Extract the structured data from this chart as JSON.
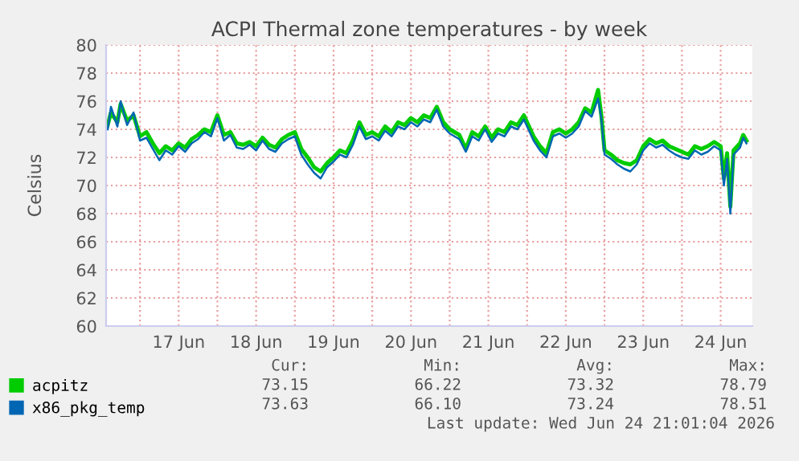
{
  "chart_data": {
    "type": "line",
    "title": "ACPI Thermal zone temperatures - by week",
    "ylabel": "Celsius",
    "x": [
      "2026-06-16T14:00",
      "2026-06-16T15:00",
      "2026-06-16T17:00",
      "2026-06-16T18:00",
      "2026-06-16T20:00",
      "2026-06-16T22:00",
      "2026-06-17T00:00",
      "2026-06-17T02:00",
      "2026-06-17T04:00",
      "2026-06-17T06:00",
      "2026-06-17T08:00",
      "2026-06-17T10:00",
      "2026-06-17T12:00",
      "2026-06-17T14:00",
      "2026-06-17T16:00",
      "2026-06-17T18:00",
      "2026-06-17T20:00",
      "2026-06-17T22:00",
      "2026-06-18T00:00",
      "2026-06-18T02:00",
      "2026-06-18T04:00",
      "2026-06-18T06:00",
      "2026-06-18T08:00",
      "2026-06-18T10:00",
      "2026-06-18T12:00",
      "2026-06-18T14:00",
      "2026-06-18T16:00",
      "2026-06-18T18:00",
      "2026-06-18T20:00",
      "2026-06-18T22:00",
      "2026-06-19T00:00",
      "2026-06-19T02:00",
      "2026-06-19T04:00",
      "2026-06-19T06:00",
      "2026-06-19T08:00",
      "2026-06-19T10:00",
      "2026-06-19T12:00",
      "2026-06-19T14:00",
      "2026-06-19T16:00",
      "2026-06-19T18:00",
      "2026-06-19T20:00",
      "2026-06-19T22:00",
      "2026-06-20T00:00",
      "2026-06-20T02:00",
      "2026-06-20T04:00",
      "2026-06-20T06:00",
      "2026-06-20T08:00",
      "2026-06-20T10:00",
      "2026-06-20T12:00",
      "2026-06-20T14:00",
      "2026-06-20T16:00",
      "2026-06-20T18:00",
      "2026-06-20T20:00",
      "2026-06-20T22:00",
      "2026-06-21T00:00",
      "2026-06-21T03:00",
      "2026-06-21T05:00",
      "2026-06-21T07:00",
      "2026-06-21T09:00",
      "2026-06-21T11:00",
      "2026-06-21T13:00",
      "2026-06-21T15:00",
      "2026-06-21T17:00",
      "2026-06-21T19:00",
      "2026-06-21T21:00",
      "2026-06-21T23:00",
      "2026-06-22T02:00",
      "2026-06-22T04:00",
      "2026-06-22T06:00",
      "2026-06-22T08:00",
      "2026-06-22T10:00",
      "2026-06-22T12:00",
      "2026-06-22T14:00",
      "2026-06-22T16:00",
      "2026-06-22T18:00",
      "2026-06-22T20:00",
      "2026-06-22T22:00",
      "2026-06-22T23:00",
      "2026-06-23T00:00",
      "2026-06-23T02:00",
      "2026-06-23T04:00",
      "2026-06-23T06:00",
      "2026-06-23T08:00",
      "2026-06-23T10:00",
      "2026-06-23T12:00",
      "2026-06-23T14:00",
      "2026-06-23T16:00",
      "2026-06-23T18:00",
      "2026-06-23T20:00",
      "2026-06-23T22:00",
      "2026-06-24T00:00",
      "2026-06-24T02:00",
      "2026-06-24T04:00",
      "2026-06-24T06:00",
      "2026-06-24T08:00",
      "2026-06-24T10:00",
      "2026-06-24T12:00",
      "2026-06-24T13:00",
      "2026-06-24T14:00",
      "2026-06-24T15:00",
      "2026-06-24T16:00",
      "2026-06-24T18:00",
      "2026-06-24T19:00",
      "2026-06-24T20:00"
    ],
    "series": [
      {
        "name": "acpitz",
        "color": "#00cc00",
        "values": [
          74.3,
          75.2,
          74.5,
          75.8,
          74.6,
          75.0,
          73.5,
          73.8,
          73.0,
          72.3,
          72.8,
          72.5,
          73.0,
          72.7,
          73.3,
          73.6,
          74.0,
          73.8,
          75.0,
          73.6,
          73.8,
          73.0,
          72.9,
          73.1,
          72.8,
          73.4,
          72.9,
          72.7,
          73.3,
          73.6,
          73.8,
          72.6,
          72.0,
          71.3,
          71.0,
          71.6,
          72.0,
          72.5,
          72.3,
          73.2,
          74.5,
          73.6,
          73.8,
          73.5,
          74.2,
          73.8,
          74.5,
          74.3,
          74.8,
          74.5,
          75.0,
          74.8,
          75.6,
          74.5,
          74.0,
          73.6,
          72.6,
          73.8,
          73.5,
          74.2,
          73.4,
          74.0,
          73.8,
          74.5,
          74.3,
          75.0,
          73.5,
          72.8,
          72.3,
          73.8,
          74.0,
          73.7,
          74.0,
          74.5,
          75.5,
          75.2,
          76.8,
          75.0,
          72.5,
          72.2,
          71.8,
          71.6,
          71.5,
          71.8,
          72.8,
          73.3,
          73.0,
          73.2,
          72.8,
          72.6,
          72.4,
          72.2,
          72.8,
          72.6,
          72.8,
          73.1,
          72.8,
          70.5,
          72.3,
          68.5,
          72.5,
          73.0,
          73.6,
          73.2
        ]
      },
      {
        "name": "x86_pkg_temp",
        "color": "#0066b3",
        "values": [
          74.0,
          75.6,
          74.2,
          76.0,
          74.3,
          75.2,
          73.2,
          73.4,
          72.6,
          71.8,
          72.5,
          72.2,
          72.8,
          72.4,
          73.0,
          73.3,
          73.8,
          73.5,
          74.8,
          73.2,
          73.6,
          72.7,
          72.6,
          72.9,
          72.5,
          73.2,
          72.6,
          72.4,
          73.0,
          73.3,
          73.5,
          72.2,
          71.5,
          70.9,
          70.5,
          71.3,
          71.7,
          72.2,
          72.0,
          72.9,
          74.2,
          73.3,
          73.5,
          73.2,
          73.9,
          73.5,
          74.2,
          74.0,
          74.5,
          74.2,
          74.7,
          74.5,
          75.4,
          74.2,
          73.7,
          73.3,
          72.4,
          73.5,
          73.2,
          74.0,
          73.1,
          73.7,
          73.5,
          74.2,
          74.0,
          74.7,
          73.2,
          72.5,
          72.0,
          73.5,
          73.7,
          73.4,
          73.7,
          74.2,
          75.3,
          74.9,
          76.2,
          74.8,
          72.2,
          71.9,
          71.5,
          71.2,
          71.0,
          71.5,
          72.5,
          73.0,
          72.7,
          72.9,
          72.5,
          72.2,
          72.0,
          71.9,
          72.5,
          72.2,
          72.4,
          72.8,
          72.5,
          70.0,
          71.9,
          68.0,
          72.2,
          72.7,
          73.4,
          73.0
        ]
      }
    ],
    "xlim": [
      "2026-06-16T13:30",
      "2026-06-24T21:50"
    ],
    "xticks": [
      {
        "value": "2026-06-17T00:00",
        "label": null
      },
      {
        "value": "2026-06-17T12:00",
        "label": "17 Jun"
      },
      {
        "value": "2026-06-18T00:00",
        "label": null
      },
      {
        "value": "2026-06-18T12:00",
        "label": "18 Jun"
      },
      {
        "value": "2026-06-19T00:00",
        "label": null
      },
      {
        "value": "2026-06-19T12:00",
        "label": "19 Jun"
      },
      {
        "value": "2026-06-20T00:00",
        "label": null
      },
      {
        "value": "2026-06-20T12:00",
        "label": "20 Jun"
      },
      {
        "value": "2026-06-21T00:00",
        "label": null
      },
      {
        "value": "2026-06-21T12:00",
        "label": "21 Jun"
      },
      {
        "value": "2026-06-22T00:00",
        "label": null
      },
      {
        "value": "2026-06-22T12:00",
        "label": "22 Jun"
      },
      {
        "value": "2026-06-23T00:00",
        "label": null
      },
      {
        "value": "2026-06-23T12:00",
        "label": "23 Jun"
      },
      {
        "value": "2026-06-24T00:00",
        "label": null
      },
      {
        "value": "2026-06-24T12:00",
        "label": "24 Jun"
      }
    ],
    "ylim": [
      60,
      80
    ],
    "yticks": [
      60,
      62,
      64,
      66,
      68,
      70,
      72,
      74,
      76,
      78,
      80
    ],
    "grid": true,
    "legend": "bottom",
    "marker": "none",
    "line_style": "solid",
    "annotations": [
      "Cur:",
      "Min:",
      "Avg:",
      "Max:",
      "73.15",
      "66.22",
      "73.32",
      "78.79",
      "73.63",
      "66.10",
      "73.24",
      "78.51",
      "Last update: Wed Jun 24 21:01:04 2026"
    ]
  }
}
